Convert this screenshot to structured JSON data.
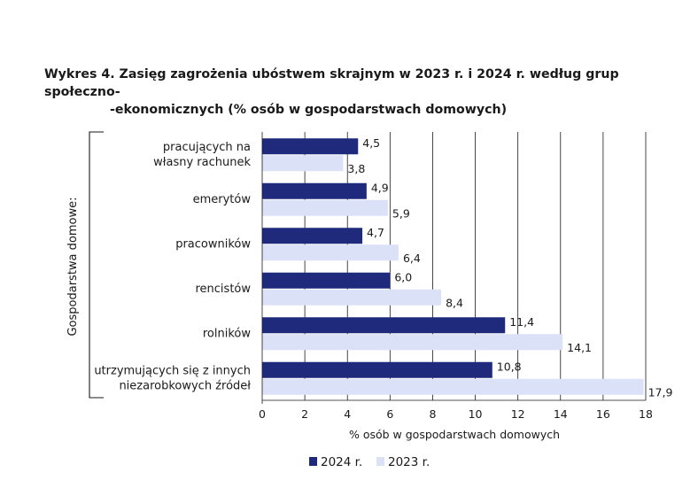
{
  "chart_data": {
    "type": "bar",
    "orientation": "horizontal",
    "title_line1": "Wykres 4. Zasięg zagrożenia ubóstwem skrajnym w 2023 r. i 2024 r. według grup społeczno-",
    "title_line2": "-ekonomicznych (% osób w gospodarstwach domowych)",
    "group_label": "Gospodarstwa domowe:",
    "xlabel": "% osób w gospodarstwach domowych",
    "xlim": [
      0,
      18
    ],
    "xticks": [
      0,
      2,
      4,
      6,
      8,
      10,
      12,
      14,
      16,
      18
    ],
    "grid": true,
    "categories": [
      [
        "pracujących na",
        "własny rachunek"
      ],
      [
        "emerytów"
      ],
      [
        "pracowników"
      ],
      [
        "rencistów"
      ],
      [
        "rolników"
      ],
      [
        "utrzymujących się z innych",
        "niezarobkowych źródeł"
      ]
    ],
    "series": [
      {
        "name": "2024 r.",
        "color": "#1f2a7c",
        "values": [
          4.5,
          4.9,
          4.7,
          6.0,
          11.4,
          10.8
        ],
        "labels": [
          "4,5",
          "4,9",
          "4,7",
          "6,0",
          "11,4",
          "10,8"
        ]
      },
      {
        "name": "2023 r.",
        "color": "#dbe1f7",
        "values": [
          3.8,
          5.9,
          6.4,
          8.4,
          14.1,
          17.9
        ],
        "labels": [
          "3,8",
          "5,9",
          "6,4",
          "8,4",
          "14,1",
          "17,9"
        ]
      }
    ],
    "legend_position": "bottom-center"
  }
}
